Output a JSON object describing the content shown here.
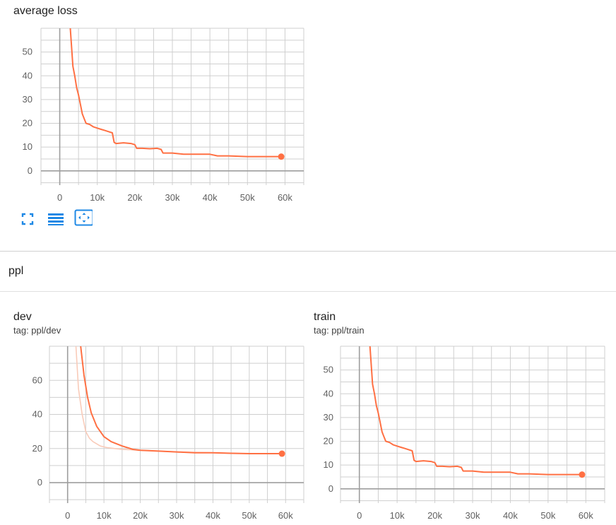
{
  "colors": {
    "accent": "#ff7043",
    "smooth_light": "#f9cbb9",
    "icon": "#1e88e5",
    "grid": "#cfcfcf",
    "axis": "#9e9e9e"
  },
  "icons": [
    "fullscreen-icon",
    "toggle-data-table-icon",
    "fit-domain-icon"
  ],
  "sections": {
    "ppl": {
      "title": "ppl"
    }
  },
  "chart_data": [
    {
      "id": "average-loss",
      "type": "line",
      "title": "average loss",
      "tag": "",
      "xlim": [
        -5000,
        65000
      ],
      "ylim": [
        -6,
        60
      ],
      "xticks": [
        0,
        10000,
        20000,
        30000,
        40000,
        50000,
        60000
      ],
      "xtick_labels": [
        "0",
        "10k",
        "20k",
        "30k",
        "40k",
        "50k",
        "60k"
      ],
      "yticks": [
        0,
        10,
        20,
        30,
        40,
        50
      ],
      "ytick_labels": [
        "0",
        "10",
        "20",
        "30",
        "40",
        "50"
      ],
      "grid": true,
      "series": [
        {
          "values_x": [
            2800,
            3500,
            4000,
            4500,
            5000,
            5500,
            6000,
            6500,
            7000,
            8000,
            9000,
            10000,
            11000,
            12000,
            13000,
            14000,
            14500,
            15000,
            17000,
            19000,
            20000,
            20500,
            22000,
            24000,
            26000,
            27000,
            27500,
            30000,
            33000,
            36000,
            40000,
            42000,
            45000,
            50000,
            55000,
            59000
          ],
          "values_y": [
            60,
            44,
            40,
            35,
            32,
            28,
            24,
            22,
            20,
            19.5,
            18.5,
            18,
            17.5,
            17,
            16.5,
            16,
            12,
            11.5,
            11.8,
            11.5,
            11,
            9.5,
            9.5,
            9.3,
            9.5,
            9,
            7.5,
            7.5,
            7,
            7,
            7,
            6.3,
            6.3,
            6,
            6,
            6
          ]
        }
      ],
      "last_point": {
        "x": 59000,
        "y": 6
      }
    },
    {
      "id": "ppl-dev",
      "type": "line",
      "title": "dev",
      "tag": "tag: ppl/dev",
      "xlim": [
        -5000,
        65000
      ],
      "ylim": [
        -12,
        80
      ],
      "xticks": [
        0,
        10000,
        20000,
        30000,
        40000,
        50000,
        60000
      ],
      "xtick_labels": [
        "0",
        "10k",
        "20k",
        "30k",
        "40k",
        "50k",
        "60k"
      ],
      "yticks": [
        0,
        20,
        40,
        60
      ],
      "ytick_labels": [
        "0",
        "20",
        "40",
        "60"
      ],
      "grid": true,
      "series": [
        {
          "name": "",
          "values_x": [
            3600,
            4500,
            5500,
            6500,
            8000,
            10000,
            12000,
            15000,
            18000,
            20000,
            25000,
            30000,
            35000,
            40000,
            45000,
            50000,
            55000,
            59000
          ],
          "values_y": [
            80,
            63,
            50,
            41,
            33,
            27,
            24,
            21.5,
            19.5,
            19,
            18.5,
            18,
            17.5,
            17.5,
            17.2,
            17,
            17,
            17
          ]
        },
        {
          "name": "",
          "values_x": [
            2300,
            3000,
            4000,
            5000,
            6000,
            7000,
            9000,
            11000,
            13000,
            15000,
            20000,
            30000,
            40000,
            50000,
            59000
          ],
          "values_y": [
            80,
            55,
            40,
            30,
            26,
            24,
            21.5,
            20.5,
            20,
            19.5,
            19,
            18,
            17.5,
            17,
            17
          ]
        }
      ],
      "last_point": {
        "x": 59000,
        "y": 17
      }
    },
    {
      "id": "ppl-train",
      "type": "line",
      "title": "train",
      "tag": "tag: ppl/train",
      "xlim": [
        -5000,
        65000
      ],
      "ylim": [
        -6,
        60
      ],
      "xticks": [
        0,
        10000,
        20000,
        30000,
        40000,
        50000,
        60000
      ],
      "xtick_labels": [
        "0",
        "10k",
        "20k",
        "30k",
        "40k",
        "50k",
        "60k"
      ],
      "yticks": [
        0,
        10,
        20,
        30,
        40,
        50
      ],
      "ytick_labels": [
        "0",
        "10",
        "20",
        "30",
        "40",
        "50"
      ],
      "grid": true,
      "series": [
        {
          "values_x": [
            2800,
            3500,
            4000,
            4500,
            5000,
            5500,
            6000,
            6500,
            7000,
            8000,
            9000,
            10000,
            11000,
            12000,
            13000,
            14000,
            14500,
            15000,
            17000,
            19000,
            20000,
            20500,
            22000,
            24000,
            26000,
            27000,
            27500,
            30000,
            33000,
            36000,
            40000,
            42000,
            45000,
            50000,
            55000,
            59000
          ],
          "values_y": [
            60,
            44,
            40,
            35,
            32,
            28,
            24,
            22,
            20,
            19.5,
            18.5,
            18,
            17.5,
            17,
            16.5,
            16,
            12,
            11.5,
            11.8,
            11.5,
            11,
            9.5,
            9.5,
            9.3,
            9.5,
            9,
            7.5,
            7.5,
            7,
            7,
            7,
            6.3,
            6.3,
            6,
            6,
            6
          ]
        }
      ],
      "last_point": {
        "x": 59000,
        "y": 6
      }
    }
  ]
}
